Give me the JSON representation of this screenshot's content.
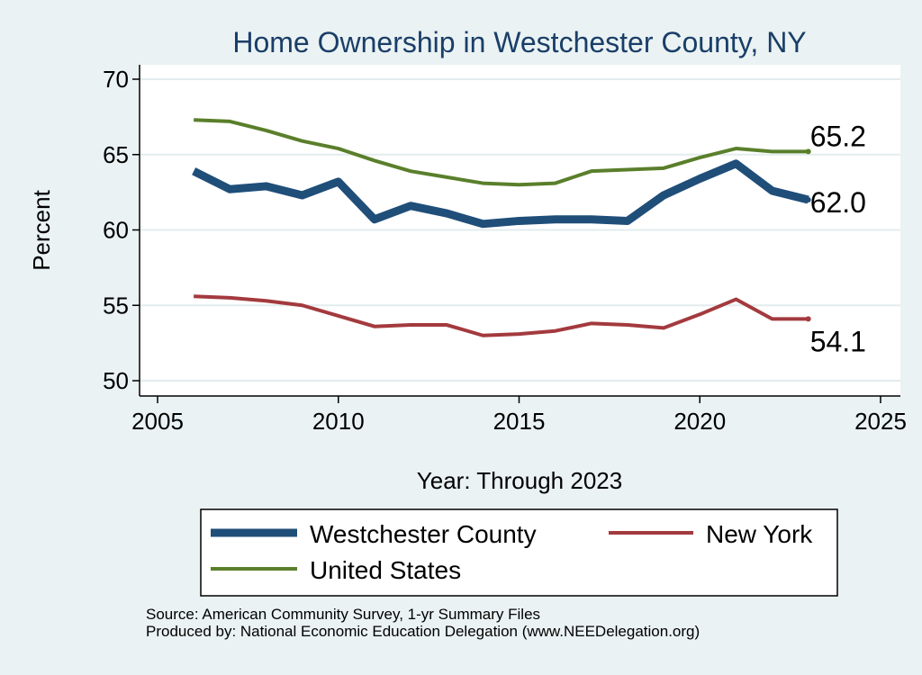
{
  "chart_data": {
    "type": "line",
    "title": "Home Ownership in Westchester County, NY",
    "xlabel": "Year: Through 2023",
    "ylabel": "Percent",
    "xlim": [
      2005,
      2025
    ],
    "ylim": [
      50,
      70
    ],
    "x_ticks": [
      2005,
      2010,
      2015,
      2020,
      2025
    ],
    "y_ticks": [
      50,
      55,
      60,
      65,
      70
    ],
    "grid": true,
    "x": [
      2006,
      2007,
      2008,
      2009,
      2010,
      2011,
      2012,
      2013,
      2014,
      2015,
      2016,
      2017,
      2018,
      2019,
      2020,
      2021,
      2022,
      2023
    ],
    "series": [
      {
        "name": "Westchester County",
        "color": "#1f4e79",
        "values": [
          63.9,
          62.7,
          62.9,
          62.3,
          63.2,
          60.7,
          61.6,
          61.1,
          60.4,
          60.6,
          60.7,
          60.7,
          60.6,
          62.3,
          63.4,
          64.4,
          62.6,
          62.0
        ],
        "end_label": "62.0"
      },
      {
        "name": "New York",
        "color": "#a33a3e",
        "values": [
          55.6,
          55.5,
          55.3,
          55.0,
          54.3,
          53.6,
          53.7,
          53.7,
          53.0,
          53.1,
          53.3,
          53.8,
          53.7,
          53.5,
          54.4,
          55.4,
          54.1,
          54.1
        ],
        "end_label": "54.1"
      },
      {
        "name": "United States",
        "color": "#5a7f2b",
        "values": [
          67.3,
          67.2,
          66.6,
          65.9,
          65.4,
          64.6,
          63.9,
          63.5,
          63.1,
          63.0,
          63.1,
          63.9,
          64.0,
          64.1,
          64.8,
          65.4,
          65.2,
          65.2
        ],
        "end_label": "65.2"
      }
    ],
    "legend": [
      "Westchester County",
      "New York",
      "United States"
    ],
    "legend_position": "bottom",
    "notes": [
      "Source: American Community Survey, 1-yr Summary Files",
      "Produced by: National Economic Education Delegation (www.NEEDelegation.org)"
    ]
  }
}
